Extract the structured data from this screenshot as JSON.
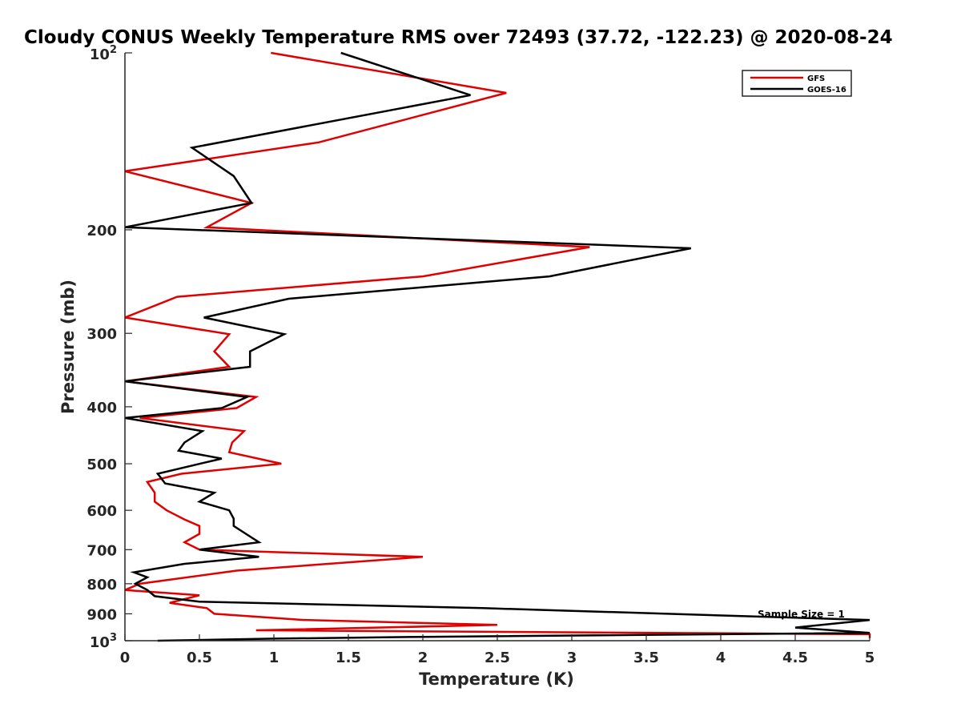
{
  "chart_data": {
    "type": "line",
    "title": "Cloudy CONUS Weekly Temperature RMS over 72493 (37.72, -122.23) @ 2020-08-24",
    "xlabel": "Temperature (K)",
    "ylabel": "Pressure (mb)",
    "xlim": [
      0,
      5
    ],
    "ylim": [
      100,
      1000
    ],
    "y_scale": "log",
    "y_direction": "reverse",
    "grid": false,
    "legend_position": "top-right",
    "x_ticks": [
      "0",
      "0.5",
      "1",
      "1.5",
      "2",
      "2.5",
      "3",
      "3.5",
      "4",
      "4.5",
      "5"
    ],
    "y_ticks": [
      {
        "value": 200,
        "label": "200"
      },
      {
        "value": 300,
        "label": "300"
      },
      {
        "value": 400,
        "label": "400"
      },
      {
        "value": 500,
        "label": "500"
      },
      {
        "value": 600,
        "label": "600"
      },
      {
        "value": 700,
        "label": "700"
      },
      {
        "value": 800,
        "label": "800"
      },
      {
        "value": 900,
        "label": "900"
      }
    ],
    "y_tick_pow_low": {
      "base": "10",
      "exp": "2"
    },
    "y_tick_pow_high": {
      "base": "10",
      "exp": "3"
    },
    "annotation": "Sample Size = 1",
    "series": [
      {
        "name": "GFS",
        "color": "#e00000",
        "points": [
          [
            0.98,
            100
          ],
          [
            2.56,
            117
          ],
          [
            1.3,
            142
          ],
          [
            0.0,
            159
          ],
          [
            0.85,
            180
          ],
          [
            0.55,
            198
          ],
          [
            3.12,
            214
          ],
          [
            2.0,
            240
          ],
          [
            0.35,
            260
          ],
          [
            0.0,
            282
          ],
          [
            0.7,
            301
          ],
          [
            0.6,
            322
          ],
          [
            0.7,
            342
          ],
          [
            0.0,
            362
          ],
          [
            0.88,
            385
          ],
          [
            0.75,
            402
          ],
          [
            0.1,
            418
          ],
          [
            0.8,
            440
          ],
          [
            0.72,
            460
          ],
          [
            0.7,
            478
          ],
          [
            1.05,
            500
          ],
          [
            0.38,
            520
          ],
          [
            0.15,
            537
          ],
          [
            0.2,
            560
          ],
          [
            0.2,
            580
          ],
          [
            0.28,
            600
          ],
          [
            0.4,
            622
          ],
          [
            0.5,
            638
          ],
          [
            0.5,
            658
          ],
          [
            0.4,
            680
          ],
          [
            0.5,
            700
          ],
          [
            2.0,
            720
          ],
          [
            0.75,
            760
          ],
          [
            0.1,
            800
          ],
          [
            0.0,
            820
          ],
          [
            0.5,
            837
          ],
          [
            0.3,
            862
          ],
          [
            0.55,
            880
          ],
          [
            0.6,
            900
          ],
          [
            1.2,
            922
          ],
          [
            2.5,
            940
          ],
          [
            0.88,
            960
          ],
          [
            5.0,
            975
          ],
          [
            5.0,
            990
          ]
        ]
      },
      {
        "name": "GOES-16",
        "color": "#000000",
        "points": [
          [
            1.45,
            100
          ],
          [
            2.32,
            118
          ],
          [
            0.45,
            145
          ],
          [
            0.73,
            162
          ],
          [
            0.85,
            180
          ],
          [
            0.0,
            198
          ],
          [
            3.8,
            215
          ],
          [
            2.85,
            240
          ],
          [
            1.1,
            262
          ],
          [
            0.53,
            282
          ],
          [
            1.07,
            301
          ],
          [
            0.84,
            322
          ],
          [
            0.84,
            342
          ],
          [
            0.0,
            362
          ],
          [
            0.82,
            385
          ],
          [
            0.65,
            402
          ],
          [
            0.0,
            418
          ],
          [
            0.52,
            440
          ],
          [
            0.4,
            460
          ],
          [
            0.36,
            475
          ],
          [
            0.65,
            490
          ],
          [
            0.22,
            520
          ],
          [
            0.27,
            540
          ],
          [
            0.6,
            560
          ],
          [
            0.5,
            580
          ],
          [
            0.7,
            600
          ],
          [
            0.73,
            620
          ],
          [
            0.73,
            638
          ],
          [
            0.82,
            660
          ],
          [
            0.9,
            680
          ],
          [
            0.5,
            700
          ],
          [
            0.9,
            720
          ],
          [
            0.4,
            740
          ],
          [
            0.06,
            765
          ],
          [
            0.15,
            780
          ],
          [
            0.07,
            800
          ],
          [
            0.15,
            820
          ],
          [
            0.2,
            840
          ],
          [
            0.5,
            858
          ],
          [
            2.4,
            880
          ],
          [
            5.0,
            922
          ],
          [
            4.5,
            950
          ],
          [
            5.0,
            970
          ],
          [
            2.0,
            985
          ],
          [
            1.0,
            992
          ],
          [
            0.22,
            1000
          ]
        ]
      }
    ]
  }
}
